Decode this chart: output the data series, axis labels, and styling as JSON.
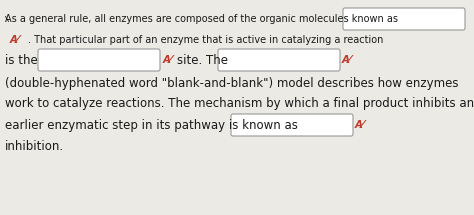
{
  "bg_color": "#eceae5",
  "box_color": "#ffffff",
  "box_edge_color": "#999999",
  "text_color": "#1a1a1a",
  "av_color": "#c0392b",
  "fs_tiny": 6.0,
  "fs_small": 7.0,
  "fs_main": 8.5,
  "line1": "As a general rule, all enzymes are composed of the organic molecules known as",
  "line2": ". That particular part of an enzyme that is active in catalyzing a reaction",
  "line3a": "is the",
  "line3b": "site. The",
  "line4": "(double-hyphenated word \"blank-and-blank\") model describes how enzymes",
  "line5": "work to catalyze reactions. The mechanism by which a final product inhibits an",
  "line6": "earlier enzymatic step in its pathway is known as",
  "line7": "inhibition.",
  "av": "A⁄",
  "fig_w": 4.74,
  "fig_h": 2.15,
  "dpi": 100
}
